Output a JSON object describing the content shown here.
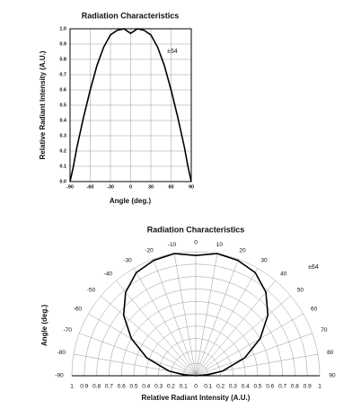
{
  "chart_data": [
    {
      "type": "line",
      "title": "Radiation Characteristics",
      "xlabel": "Angle (deg.)",
      "ylabel": "Relative Radiant Intensity (A.U.)",
      "annotation": "±64",
      "x": [
        -90,
        -85,
        -80,
        -70,
        -60,
        -50,
        -40,
        -30,
        -20,
        -10,
        0,
        10,
        20,
        30,
        40,
        50,
        60,
        70,
        80,
        85,
        90
      ],
      "values": [
        0,
        0.1,
        0.22,
        0.42,
        0.6,
        0.76,
        0.88,
        0.96,
        0.99,
        1.0,
        0.97,
        1.0,
        0.99,
        0.96,
        0.88,
        0.76,
        0.6,
        0.42,
        0.22,
        0.1,
        0
      ],
      "color": "#000000",
      "xlim": [
        -90,
        90
      ],
      "xticks": [
        -90,
        -60,
        -30,
        0,
        30,
        60,
        90
      ],
      "ylim": [
        0,
        1
      ],
      "yticks": [
        {
          "value": 0,
          "label": "0.0"
        },
        0.1,
        0.2,
        0.3,
        0.4,
        0.5,
        0.6,
        0.7,
        0.8,
        0.9,
        {
          "value": 1,
          "label": "1.0"
        }
      ],
      "grid": true
    },
    {
      "type": "polar",
      "title": "Radiation Characteristics",
      "xlabel": "Relative Radiant Intensity (A.U.)",
      "ylabel": "Angle (deg.)",
      "annotation": "±64",
      "theta": [
        -90,
        -85,
        -80,
        -70,
        -60,
        -50,
        -40,
        -30,
        -20,
        -10,
        0,
        10,
        20,
        30,
        40,
        50,
        60,
        70,
        80,
        85,
        90
      ],
      "values": [
        0,
        0.1,
        0.22,
        0.42,
        0.6,
        0.76,
        0.88,
        0.96,
        0.99,
        1.0,
        0.97,
        1.0,
        0.99,
        0.96,
        0.88,
        0.76,
        0.6,
        0.42,
        0.22,
        0.1,
        0
      ],
      "color": "#000000",
      "thetalim": [
        -90,
        90
      ],
      "thetaticks": [
        -90,
        -80,
        -70,
        -60,
        -50,
        -40,
        -30,
        -20,
        -10,
        0,
        10,
        20,
        30,
        40,
        50,
        60,
        70,
        80,
        90
      ],
      "rlim": [
        0,
        1
      ],
      "rticks": [
        0,
        0.1,
        0.2,
        0.3,
        0.4,
        0.5,
        0.6,
        0.7,
        0.8,
        0.9,
        1
      ],
      "grid": true
    }
  ]
}
